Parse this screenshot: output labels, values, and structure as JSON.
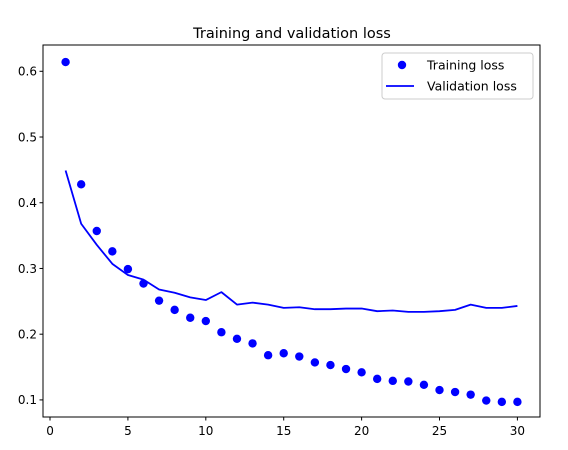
{
  "chart_data": {
    "type": "line",
    "title": "Training and validation loss",
    "xlabel": "",
    "ylabel": "",
    "xlim": [
      -0.45,
      31.45
    ],
    "ylim": [
      0.074,
      0.64
    ],
    "x_ticks": [
      0,
      5,
      10,
      15,
      20,
      25,
      30
    ],
    "y_ticks": [
      0.1,
      0.2,
      0.3,
      0.4,
      0.5,
      0.6
    ],
    "grid": false,
    "legend_position": "top-right",
    "x": [
      1,
      2,
      3,
      4,
      5,
      6,
      7,
      8,
      9,
      10,
      11,
      12,
      13,
      14,
      15,
      16,
      17,
      18,
      19,
      20,
      21,
      22,
      23,
      24,
      25,
      26,
      27,
      28,
      29,
      30
    ],
    "series": [
      {
        "name": "Training loss",
        "style": "markers",
        "color": "#0000ff",
        "values": [
          0.614,
          0.428,
          0.357,
          0.326,
          0.299,
          0.277,
          0.251,
          0.237,
          0.225,
          0.22,
          0.203,
          0.193,
          0.186,
          0.168,
          0.171,
          0.166,
          0.157,
          0.153,
          0.147,
          0.142,
          0.132,
          0.129,
          0.128,
          0.123,
          0.115,
          0.112,
          0.108,
          0.099,
          0.097,
          0.097
        ]
      },
      {
        "name": "Validation loss",
        "style": "line",
        "color": "#0000ff",
        "values": [
          0.449,
          0.368,
          0.336,
          0.307,
          0.29,
          0.283,
          0.268,
          0.263,
          0.256,
          0.252,
          0.264,
          0.245,
          0.248,
          0.245,
          0.24,
          0.241,
          0.238,
          0.238,
          0.239,
          0.239,
          0.235,
          0.236,
          0.234,
          0.234,
          0.235,
          0.237,
          0.245,
          0.24,
          0.24,
          0.243
        ]
      }
    ]
  }
}
